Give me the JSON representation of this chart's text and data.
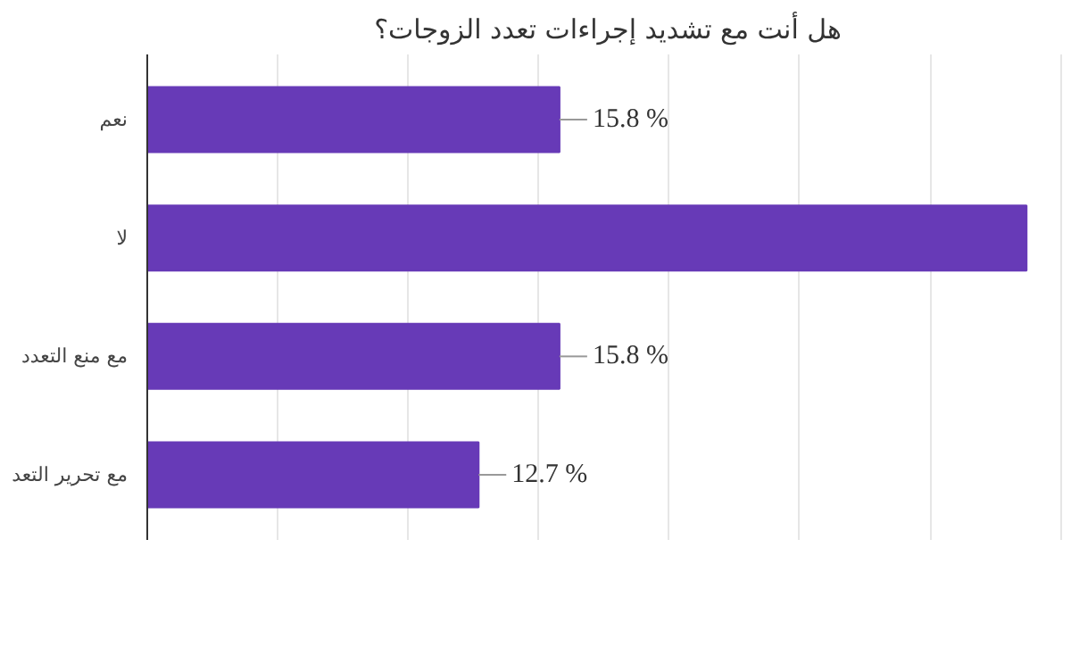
{
  "chart_data": {
    "type": "bar",
    "orientation": "horizontal",
    "title": "هل أنت مع تشديد إجراءات تعدد الزوجات؟",
    "categories": [
      "نعم",
      "لا",
      "مع منع التعدد",
      "مع تحرير التعد"
    ],
    "values": [
      15.8,
      33.7,
      15.8,
      12.7
    ],
    "color": "#673ab7",
    "value_labels": [
      "15.8 %",
      null,
      "15.8  %",
      "12.7 %"
    ],
    "xlim": [
      0,
      35.3
    ],
    "xticks": [
      {
        "value": 0,
        "label": null
      },
      {
        "value": 5,
        "label": null
      },
      {
        "value": 10,
        "label": null
      },
      {
        "value": 15,
        "label": null
      },
      {
        "value": 20,
        "label": null
      },
      {
        "value": 25,
        "label": null
      },
      {
        "value": 30,
        "label": null
      },
      {
        "value": 35,
        "label": null
      }
    ],
    "grid": "x",
    "tick_labels": "y"
  }
}
